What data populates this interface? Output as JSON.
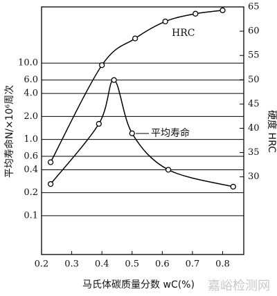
{
  "chart_data": {
    "type": "line",
    "xlabel": "马氏体碳质量分数 wC(%)",
    "ylabel": "平均寿命N/×10⁶周次",
    "y2label": "硬度 HRC",
    "annotations": [
      "HRC",
      "平均寿命"
    ],
    "watermark": "嘉峪检测网",
    "xlim": [
      0.2,
      0.87
    ],
    "xticks": [
      0.2,
      0.3,
      0.4,
      0.5,
      0.6,
      0.7,
      0.8
    ],
    "ylim": [
      0.031,
      54.5
    ],
    "yscale": "log",
    "yticks": [
      0.1,
      0.2,
      0.4,
      0.6,
      {
        "value": 1,
        "label": "1.0"
      },
      {
        "value": 2,
        "label": "2.0"
      },
      {
        "value": 4,
        "label": "4.0"
      },
      {
        "value": 6,
        "label": "6.0"
      },
      {
        "value": 10,
        "label": "10.0"
      }
    ],
    "y2lim": [
      14,
      65
    ],
    "y2ticks": [
      30,
      35,
      40,
      45,
      50,
      55,
      60,
      65
    ],
    "grid": true,
    "series": [
      {
        "name": "HRC",
        "color": "#000000",
        "axis": "y2",
        "x": [
          0.23,
          0.4,
          0.51,
          0.61,
          0.71,
          0.8
        ],
        "values": [
          33,
          53,
          58.5,
          62,
          63.6,
          64.3
        ]
      },
      {
        "name": "平均寿命",
        "color": "#000000",
        "x": [
          0.23,
          0.39,
          0.44,
          0.5,
          0.62,
          0.835
        ],
        "values": [
          0.26,
          1.6,
          6.0,
          1.2,
          0.4,
          0.24
        ]
      }
    ]
  }
}
